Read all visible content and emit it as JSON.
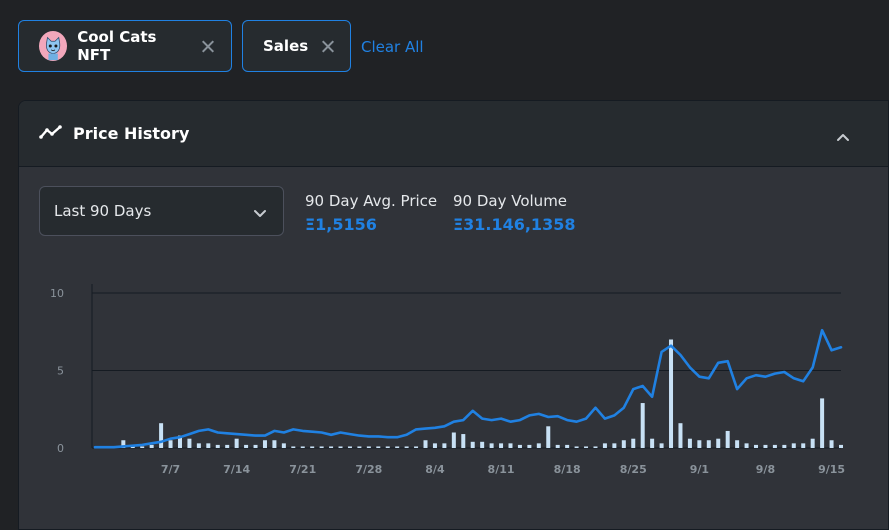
{
  "filters": {
    "collection": {
      "label": "Cool Cats NFT",
      "avatar_icon": "cool-cat-avatar"
    },
    "event": {
      "label": "Sales"
    },
    "clear_all_label": "Clear All"
  },
  "panel": {
    "title": "Price History",
    "icon": "trend-line-icon",
    "collapse_icon": "chevron-up-icon"
  },
  "range_select": {
    "value": "Last 90 Days"
  },
  "stats": {
    "avg_price": {
      "label": "90 Day Avg. Price",
      "value": "Ξ1,5156"
    },
    "volume": {
      "label": "90 Day Volume",
      "value": "Ξ31.146,1358"
    }
  },
  "colors": {
    "accent": "#2081e2",
    "bar": "#c8e1f5",
    "grid": "#151b22",
    "background": "#303339"
  },
  "chart_data": {
    "type": "line",
    "ylim": [
      0,
      10
    ],
    "yticks": [
      "10",
      "5",
      "0"
    ],
    "ytick_values": [
      10,
      5,
      0
    ],
    "xticks": [
      "7/7",
      "7/14",
      "7/21",
      "7/28",
      "8/4",
      "8/11",
      "8/18",
      "8/25",
      "9/1",
      "9/8",
      "9/15"
    ],
    "xtick_index": [
      8,
      15,
      22,
      29,
      36,
      43,
      50,
      57,
      64,
      71,
      78
    ],
    "series": [
      {
        "kind": "line",
        "values": [
          0.05,
          0.05,
          0.05,
          0.1,
          0.15,
          0.2,
          0.3,
          0.4,
          0.6,
          0.7,
          0.9,
          1.1,
          1.2,
          1.0,
          0.95,
          0.9,
          0.85,
          0.8,
          0.8,
          1.1,
          1.0,
          1.2,
          1.1,
          1.05,
          1.0,
          0.85,
          1.0,
          0.9,
          0.8,
          0.75,
          0.75,
          0.7,
          0.7,
          0.85,
          1.2,
          1.25,
          1.3,
          1.4,
          1.7,
          1.8,
          2.4,
          1.9,
          1.8,
          1.9,
          1.7,
          1.8,
          2.1,
          2.2,
          2.0,
          2.05,
          1.8,
          1.7,
          1.9,
          2.6,
          1.9,
          2.1,
          2.6,
          3.8,
          4.0,
          3.3,
          6.2,
          6.6,
          6.0,
          5.2,
          4.6,
          4.5,
          5.5,
          5.6,
          3.8,
          4.5,
          4.7,
          4.6,
          4.8,
          4.9,
          4.5,
          4.3,
          5.2,
          7.6,
          6.3,
          6.5
        ]
      },
      {
        "kind": "bar",
        "values": [
          0,
          0,
          0,
          0.5,
          0.2,
          0.1,
          0.2,
          1.6,
          0.5,
          0.8,
          0.6,
          0.3,
          0.3,
          0.2,
          0.2,
          0.6,
          0.2,
          0.2,
          0.5,
          0.5,
          0.3,
          0.1,
          0.1,
          0.1,
          0.1,
          0.1,
          0.1,
          0.1,
          0.1,
          0.1,
          0.1,
          0.1,
          0.1,
          0.1,
          0.1,
          0.5,
          0.3,
          0.3,
          1.0,
          0.9,
          0.4,
          0.4,
          0.3,
          0.3,
          0.3,
          0.2,
          0.2,
          0.3,
          1.4,
          0.2,
          0.2,
          0.1,
          0.1,
          0.1,
          0.3,
          0.3,
          0.5,
          0.6,
          2.9,
          0.6,
          0.3,
          7.0,
          1.6,
          0.6,
          0.5,
          0.5,
          0.6,
          1.1,
          0.5,
          0.3,
          0.2,
          0.2,
          0.2,
          0.2,
          0.3,
          0.3,
          0.6,
          3.2,
          0.5,
          0.2
        ]
      }
    ]
  }
}
